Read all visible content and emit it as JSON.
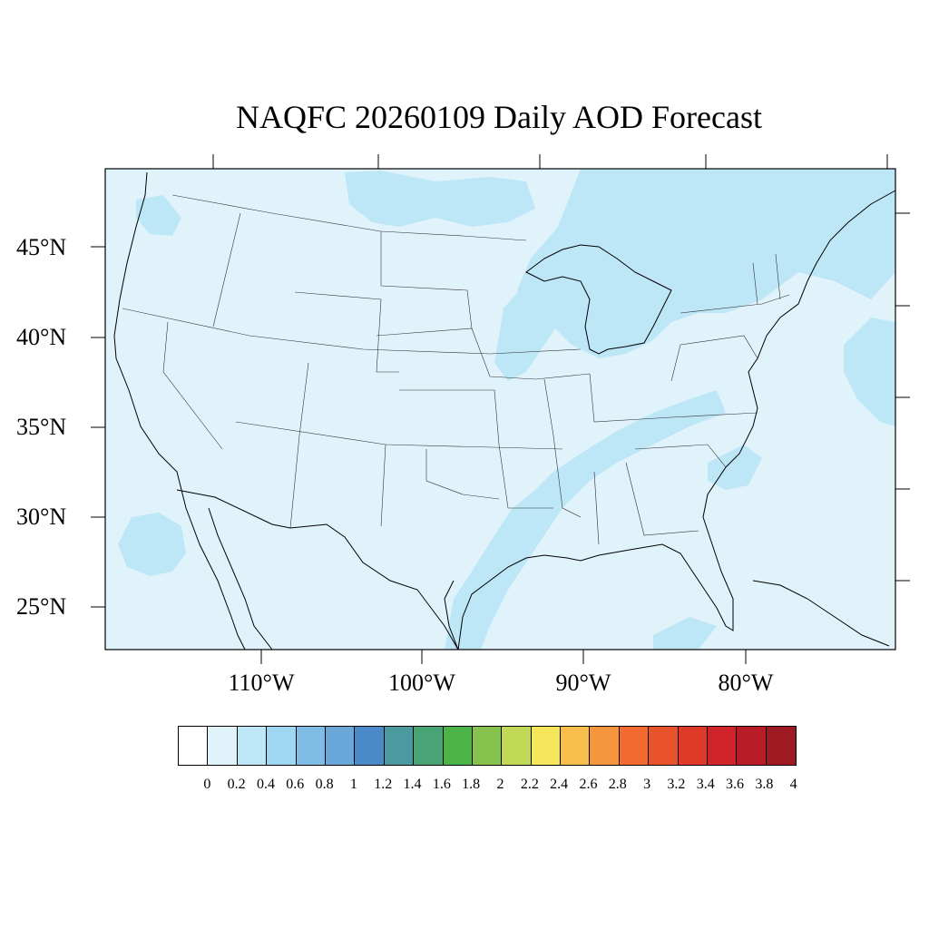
{
  "title": "NAQFC 20260109 Daily AOD Forecast",
  "latitude_labels": [
    "45°N",
    "40°N",
    "35°N",
    "30°N",
    "25°N"
  ],
  "longitude_labels": [
    "110°W",
    "100°W",
    "90°W",
    "80°W"
  ],
  "colorbar": {
    "labels": [
      "0",
      "0.2",
      "0.4",
      "0.6",
      "0.8",
      "1",
      "1.2",
      "1.4",
      "1.6",
      "1.8",
      "2",
      "2.2",
      "2.4",
      "2.6",
      "2.8",
      "3",
      "3.2",
      "3.4",
      "3.6",
      "3.8",
      "4"
    ],
    "colors": [
      "#ffffff",
      "#e0f3fb",
      "#bde6f7",
      "#9fd6f2",
      "#80bde5",
      "#69a8d9",
      "#4a8ac8",
      "#4a9aa0",
      "#48a474",
      "#4cb347",
      "#86c24d",
      "#c2d857",
      "#f6e65c",
      "#f7be4c",
      "#f5963f",
      "#f26a2f",
      "#e9532c",
      "#df3a28",
      "#d0232a",
      "#b81c26",
      "#9e1a22"
    ]
  },
  "map_colors": {
    "background_aod": "#e0f3fb",
    "elevated_aod": "#bde6f7"
  }
}
